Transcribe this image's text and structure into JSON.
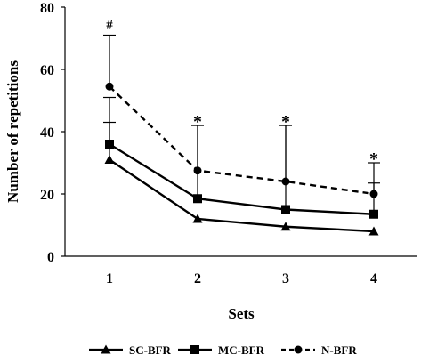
{
  "chart_data": {
    "type": "line",
    "xlabel": "Sets",
    "ylabel": "Number of repetitions",
    "categories": [
      "1",
      "2",
      "3",
      "4"
    ],
    "ylim": [
      0,
      80
    ],
    "yticks": [
      "0",
      "20",
      "40",
      "60",
      "80"
    ],
    "grid": false,
    "legend_position": "bottom",
    "series": [
      {
        "name": "SC-BFR",
        "values": [
          31,
          12,
          9.5,
          8
        ],
        "error_upper": [
          43,
          null,
          null,
          null
        ],
        "marker": "triangle",
        "line": "solid",
        "color": "#000000"
      },
      {
        "name": "MC-BFR",
        "values": [
          36,
          18.5,
          15,
          13.5
        ],
        "error_upper": [
          51,
          42,
          42,
          23.5
        ],
        "marker": "square",
        "line": "solid",
        "color": "#000000"
      },
      {
        "name": "N-BFR",
        "values": [
          54.5,
          27.5,
          24,
          20
        ],
        "error_upper": [
          71,
          42,
          42,
          30
        ],
        "marker": "circle",
        "line": "dashed",
        "color": "#000000"
      }
    ],
    "annotations": [
      "#",
      "*",
      "*",
      "*"
    ]
  }
}
